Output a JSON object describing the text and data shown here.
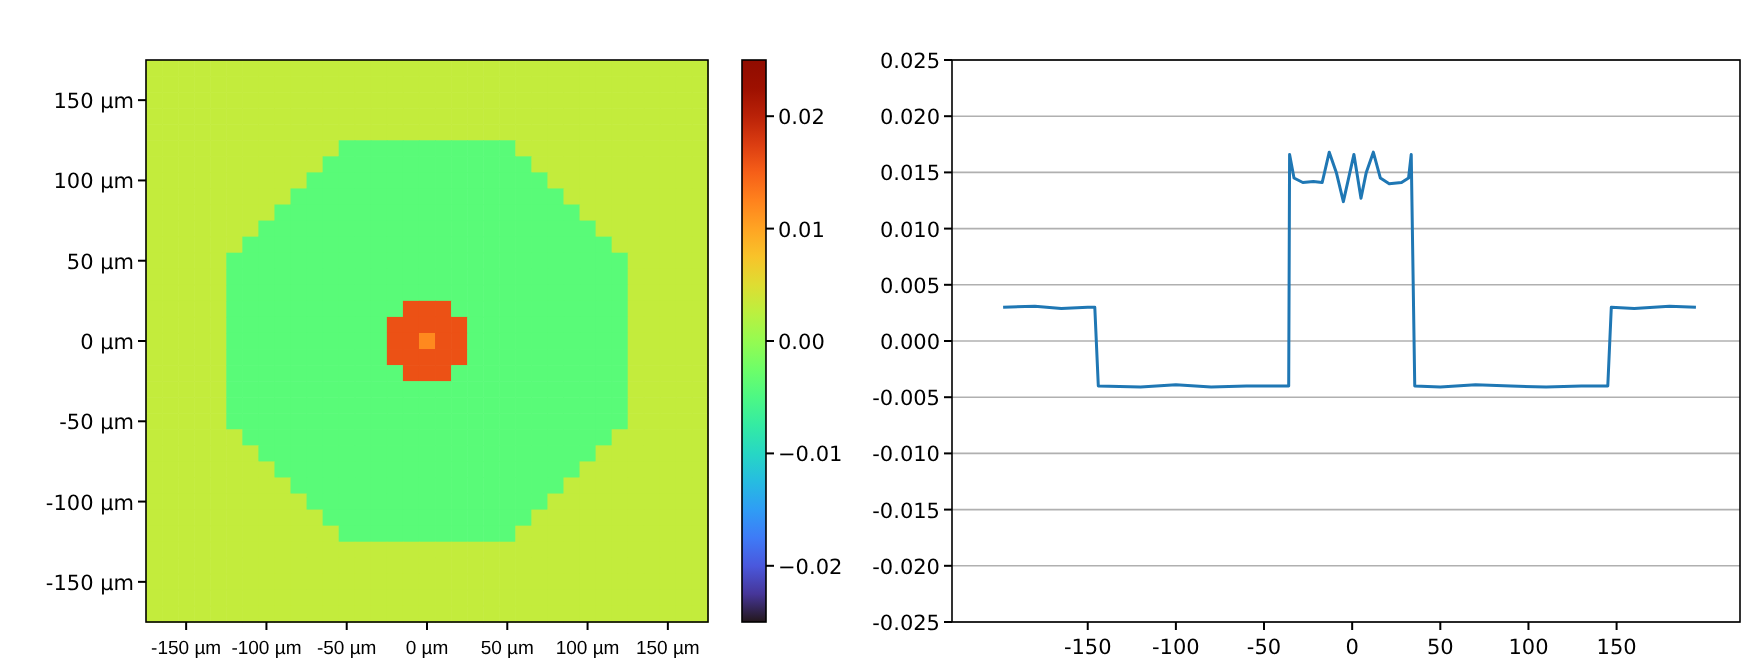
{
  "chart_data": [
    {
      "type": "heatmap",
      "categories": [
        null,
        null,
        "-150 µm",
        null,
        null,
        null,
        null,
        "-100 µm",
        null,
        null,
        null,
        null,
        "-50 µm",
        null,
        null,
        null,
        null,
        "0 µm",
        null,
        null,
        null,
        null,
        "50 µm",
        null,
        null,
        null,
        null,
        "100 µm",
        null,
        null,
        null,
        null,
        "150 µm",
        null,
        null
      ],
      "y_categories": [
        null,
        null,
        "150 µm",
        null,
        null,
        null,
        null,
        "100 µm",
        null,
        null,
        null,
        null,
        "50 µm",
        null,
        null,
        null,
        null,
        "0 µm",
        null,
        null,
        null,
        null,
        "-50 µm",
        null,
        null,
        null,
        null,
        "-100 µm",
        null,
        null,
        null,
        null,
        "-150 µm",
        null,
        null
      ],
      "clim": [
        -0.025,
        0.025
      ],
      "cticks": [
        {
          "value": -0.02,
          "label": "−0.02"
        },
        {
          "value": -0.01,
          "label": "−0.01"
        },
        {
          "value": 0,
          "label": "0.00"
        },
        {
          "value": 0.01,
          "label": "0.01"
        },
        {
          "value": 0.02,
          "label": "0.02"
        }
      ],
      "cells": [
        [
          0.003,
          0.003,
          0.003,
          0.003,
          0.003,
          0.003,
          0.003,
          0.003,
          0.003,
          0.003,
          0.003,
          0.003,
          0.003,
          0.003,
          0.003,
          0.003,
          0.003,
          0.003,
          0.003,
          0.003,
          0.003,
          0.003,
          0.003,
          0.003,
          0.003,
          0.003,
          0.003,
          0.003,
          0.003,
          0.003,
          0.003,
          0.003,
          0.003,
          0.003,
          0.003
        ],
        [
          0.003,
          0.003,
          0.003,
          0.003,
          0.003,
          0.003,
          0.003,
          0.003,
          0.003,
          0.003,
          0.003,
          0.003,
          0.003,
          0.003,
          0.003,
          0.003,
          0.003,
          0.003,
          0.003,
          0.003,
          0.003,
          0.003,
          0.003,
          0.003,
          0.003,
          0.003,
          0.003,
          0.003,
          0.003,
          0.003,
          0.003,
          0.003,
          0.003,
          0.003,
          0.003
        ],
        [
          0.003,
          0.003,
          0.003,
          0.003,
          0.003,
          0.003,
          0.003,
          0.003,
          0.003,
          0.003,
          0.003,
          0.003,
          0.003,
          0.003,
          0.003,
          0.003,
          0.003,
          0.003,
          0.003,
          0.003,
          0.003,
          0.003,
          0.003,
          0.003,
          0.003,
          0.003,
          0.003,
          0.003,
          0.003,
          0.003,
          0.003,
          0.003,
          0.003,
          0.003,
          0.003
        ],
        [
          0.003,
          0.003,
          0.003,
          0.003,
          0.003,
          0.003,
          0.003,
          0.003,
          0.003,
          0.003,
          0.003,
          0.003,
          0.003,
          0.003,
          0.003,
          0.003,
          0.003,
          0.003,
          0.003,
          0.003,
          0.003,
          0.003,
          0.003,
          0.003,
          0.003,
          0.003,
          0.003,
          0.003,
          0.003,
          0.003,
          0.003,
          0.003,
          0.003,
          0.003,
          0.003
        ],
        [
          0.003,
          0.003,
          0.003,
          0.003,
          0.003,
          0.003,
          0.003,
          0.003,
          0.003,
          0.003,
          0.003,
          0.003,
          0.003,
          0.003,
          0.003,
          0.003,
          0.003,
          0.003,
          0.003,
          0.003,
          0.003,
          0.003,
          0.003,
          0.003,
          0.003,
          0.003,
          0.003,
          0.003,
          0.003,
          0.003,
          0.003,
          0.003,
          0.003,
          0.003,
          0.003
        ],
        [
          0.003,
          0.003,
          0.003,
          0.003,
          0.003,
          0.003,
          0.003,
          0.003,
          0.003,
          0.003,
          0.003,
          0.003,
          -0.004,
          -0.004,
          -0.004,
          -0.004,
          -0.004,
          -0.004,
          -0.004,
          -0.004,
          -0.004,
          -0.004,
          -0.004,
          0.003,
          0.003,
          0.003,
          0.003,
          0.003,
          0.003,
          0.003,
          0.003,
          0.003,
          0.003,
          0.003,
          0.003
        ],
        [
          0.003,
          0.003,
          0.003,
          0.003,
          0.003,
          0.003,
          0.003,
          0.003,
          0.003,
          0.003,
          0.003,
          -0.004,
          -0.004,
          -0.004,
          -0.004,
          -0.004,
          -0.004,
          -0.004,
          -0.004,
          -0.004,
          -0.004,
          -0.004,
          -0.004,
          -0.004,
          0.003,
          0.003,
          0.003,
          0.003,
          0.003,
          0.003,
          0.003,
          0.003,
          0.003,
          0.003,
          0.003
        ],
        [
          0.003,
          0.003,
          0.003,
          0.003,
          0.003,
          0.003,
          0.003,
          0.003,
          0.003,
          0.003,
          -0.004,
          -0.004,
          -0.004,
          -0.004,
          -0.004,
          -0.004,
          -0.004,
          -0.004,
          -0.004,
          -0.004,
          -0.004,
          -0.004,
          -0.004,
          -0.004,
          -0.004,
          0.003,
          0.003,
          0.003,
          0.003,
          0.003,
          0.003,
          0.003,
          0.003,
          0.003,
          0.003
        ],
        [
          0.003,
          0.003,
          0.003,
          0.003,
          0.003,
          0.003,
          0.003,
          0.003,
          0.003,
          -0.004,
          -0.004,
          -0.004,
          -0.004,
          -0.004,
          -0.004,
          -0.004,
          -0.004,
          -0.004,
          -0.004,
          -0.004,
          -0.004,
          -0.004,
          -0.004,
          -0.004,
          -0.004,
          -0.004,
          0.003,
          0.003,
          0.003,
          0.003,
          0.003,
          0.003,
          0.003,
          0.003,
          0.003
        ],
        [
          0.003,
          0.003,
          0.003,
          0.003,
          0.003,
          0.003,
          0.003,
          0.003,
          -0.004,
          -0.004,
          -0.004,
          -0.004,
          -0.004,
          -0.004,
          -0.004,
          -0.004,
          -0.004,
          -0.004,
          -0.004,
          -0.004,
          -0.004,
          -0.004,
          -0.004,
          -0.004,
          -0.004,
          -0.004,
          -0.004,
          0.003,
          0.003,
          0.003,
          0.003,
          0.003,
          0.003,
          0.003,
          0.003
        ],
        [
          0.003,
          0.003,
          0.003,
          0.003,
          0.003,
          0.003,
          0.003,
          -0.004,
          -0.004,
          -0.004,
          -0.004,
          -0.004,
          -0.004,
          -0.004,
          -0.004,
          -0.004,
          -0.004,
          -0.004,
          -0.004,
          -0.004,
          -0.004,
          -0.004,
          -0.004,
          -0.004,
          -0.004,
          -0.004,
          -0.004,
          -0.004,
          0.003,
          0.003,
          0.003,
          0.003,
          0.003,
          0.003,
          0.003
        ],
        [
          0.003,
          0.003,
          0.003,
          0.003,
          0.003,
          0.003,
          -0.004,
          -0.004,
          -0.004,
          -0.004,
          -0.004,
          -0.004,
          -0.004,
          -0.004,
          -0.004,
          -0.004,
          -0.004,
          -0.004,
          -0.004,
          -0.004,
          -0.004,
          -0.004,
          -0.004,
          -0.004,
          -0.004,
          -0.004,
          -0.004,
          -0.004,
          -0.004,
          0.003,
          0.003,
          0.003,
          0.003,
          0.003,
          0.003
        ],
        [
          0.003,
          0.003,
          0.003,
          0.003,
          0.003,
          -0.004,
          -0.004,
          -0.004,
          -0.004,
          -0.004,
          -0.004,
          -0.004,
          -0.004,
          -0.004,
          -0.004,
          -0.004,
          -0.004,
          -0.004,
          -0.004,
          -0.004,
          -0.004,
          -0.004,
          -0.004,
          -0.004,
          -0.004,
          -0.004,
          -0.004,
          -0.004,
          -0.004,
          -0.004,
          0.003,
          0.003,
          0.003,
          0.003,
          0.003
        ],
        [
          0.003,
          0.003,
          0.003,
          0.003,
          0.003,
          -0.004,
          -0.004,
          -0.004,
          -0.004,
          -0.004,
          -0.004,
          -0.004,
          -0.004,
          -0.004,
          -0.004,
          -0.004,
          -0.004,
          -0.004,
          -0.004,
          -0.004,
          -0.004,
          -0.004,
          -0.004,
          -0.004,
          -0.004,
          -0.004,
          -0.004,
          -0.004,
          -0.004,
          -0.004,
          0.003,
          0.003,
          0.003,
          0.003,
          0.003
        ],
        [
          0.003,
          0.003,
          0.003,
          0.003,
          0.003,
          -0.004,
          -0.004,
          -0.004,
          -0.004,
          -0.004,
          -0.004,
          -0.004,
          -0.004,
          -0.004,
          -0.004,
          -0.004,
          -0.004,
          -0.004,
          -0.004,
          -0.004,
          -0.004,
          -0.004,
          -0.004,
          -0.004,
          -0.004,
          -0.004,
          -0.004,
          -0.004,
          -0.004,
          -0.004,
          0.003,
          0.003,
          0.003,
          0.003,
          0.003
        ],
        [
          0.003,
          0.003,
          0.003,
          0.003,
          0.003,
          -0.004,
          -0.004,
          -0.004,
          -0.004,
          -0.004,
          -0.004,
          -0.004,
          -0.004,
          -0.004,
          -0.004,
          -0.004,
          0.016,
          0.016,
          0.016,
          -0.004,
          -0.004,
          -0.004,
          -0.004,
          -0.004,
          -0.004,
          -0.004,
          -0.004,
          -0.004,
          -0.004,
          -0.004,
          0.003,
          0.003,
          0.003,
          0.003,
          0.003
        ],
        [
          0.003,
          0.003,
          0.003,
          0.003,
          0.003,
          -0.004,
          -0.004,
          -0.004,
          -0.004,
          -0.004,
          -0.004,
          -0.004,
          -0.004,
          -0.004,
          -0.004,
          0.016,
          0.016,
          0.016,
          0.016,
          0.016,
          -0.004,
          -0.004,
          -0.004,
          -0.004,
          -0.004,
          -0.004,
          -0.004,
          -0.004,
          -0.004,
          -0.004,
          0.003,
          0.003,
          0.003,
          0.003,
          0.003
        ],
        [
          0.003,
          0.003,
          0.003,
          0.003,
          0.003,
          -0.004,
          -0.004,
          -0.004,
          -0.004,
          -0.004,
          -0.004,
          -0.004,
          -0.004,
          -0.004,
          -0.004,
          0.016,
          0.016,
          0.012,
          0.016,
          0.016,
          -0.004,
          -0.004,
          -0.004,
          -0.004,
          -0.004,
          -0.004,
          -0.004,
          -0.004,
          -0.004,
          -0.004,
          0.003,
          0.003,
          0.003,
          0.003,
          0.003
        ],
        [
          0.003,
          0.003,
          0.003,
          0.003,
          0.003,
          -0.004,
          -0.004,
          -0.004,
          -0.004,
          -0.004,
          -0.004,
          -0.004,
          -0.004,
          -0.004,
          -0.004,
          0.016,
          0.016,
          0.016,
          0.016,
          0.016,
          -0.004,
          -0.004,
          -0.004,
          -0.004,
          -0.004,
          -0.004,
          -0.004,
          -0.004,
          -0.004,
          -0.004,
          0.003,
          0.003,
          0.003,
          0.003,
          0.003
        ],
        [
          0.003,
          0.003,
          0.003,
          0.003,
          0.003,
          -0.004,
          -0.004,
          -0.004,
          -0.004,
          -0.004,
          -0.004,
          -0.004,
          -0.004,
          -0.004,
          -0.004,
          -0.004,
          0.016,
          0.016,
          0.016,
          -0.004,
          -0.004,
          -0.004,
          -0.004,
          -0.004,
          -0.004,
          -0.004,
          -0.004,
          -0.004,
          -0.004,
          -0.004,
          0.003,
          0.003,
          0.003,
          0.003,
          0.003
        ],
        [
          0.003,
          0.003,
          0.003,
          0.003,
          0.003,
          -0.004,
          -0.004,
          -0.004,
          -0.004,
          -0.004,
          -0.004,
          -0.004,
          -0.004,
          -0.004,
          -0.004,
          -0.004,
          -0.004,
          -0.004,
          -0.004,
          -0.004,
          -0.004,
          -0.004,
          -0.004,
          -0.004,
          -0.004,
          -0.004,
          -0.004,
          -0.004,
          -0.004,
          -0.004,
          0.003,
          0.003,
          0.003,
          0.003,
          0.003
        ],
        [
          0.003,
          0.003,
          0.003,
          0.003,
          0.003,
          -0.004,
          -0.004,
          -0.004,
          -0.004,
          -0.004,
          -0.004,
          -0.004,
          -0.004,
          -0.004,
          -0.004,
          -0.004,
          -0.004,
          -0.004,
          -0.004,
          -0.004,
          -0.004,
          -0.004,
          -0.004,
          -0.004,
          -0.004,
          -0.004,
          -0.004,
          -0.004,
          -0.004,
          -0.004,
          0.003,
          0.003,
          0.003,
          0.003,
          0.003
        ],
        [
          0.003,
          0.003,
          0.003,
          0.003,
          0.003,
          -0.004,
          -0.004,
          -0.004,
          -0.004,
          -0.004,
          -0.004,
          -0.004,
          -0.004,
          -0.004,
          -0.004,
          -0.004,
          -0.004,
          -0.004,
          -0.004,
          -0.004,
          -0.004,
          -0.004,
          -0.004,
          -0.004,
          -0.004,
          -0.004,
          -0.004,
          -0.004,
          -0.004,
          -0.004,
          0.003,
          0.003,
          0.003,
          0.003,
          0.003
        ],
        [
          0.003,
          0.003,
          0.003,
          0.003,
          0.003,
          0.003,
          -0.004,
          -0.004,
          -0.004,
          -0.004,
          -0.004,
          -0.004,
          -0.004,
          -0.004,
          -0.004,
          -0.004,
          -0.004,
          -0.004,
          -0.004,
          -0.004,
          -0.004,
          -0.004,
          -0.004,
          -0.004,
          -0.004,
          -0.004,
          -0.004,
          -0.004,
          -0.004,
          0.003,
          0.003,
          0.003,
          0.003,
          0.003,
          0.003
        ],
        [
          0.003,
          0.003,
          0.003,
          0.003,
          0.003,
          0.003,
          0.003,
          -0.004,
          -0.004,
          -0.004,
          -0.004,
          -0.004,
          -0.004,
          -0.004,
          -0.004,
          -0.004,
          -0.004,
          -0.004,
          -0.004,
          -0.004,
          -0.004,
          -0.004,
          -0.004,
          -0.004,
          -0.004,
          -0.004,
          -0.004,
          -0.004,
          0.003,
          0.003,
          0.003,
          0.003,
          0.003,
          0.003,
          0.003
        ],
        [
          0.003,
          0.003,
          0.003,
          0.003,
          0.003,
          0.003,
          0.003,
          0.003,
          -0.004,
          -0.004,
          -0.004,
          -0.004,
          -0.004,
          -0.004,
          -0.004,
          -0.004,
          -0.004,
          -0.004,
          -0.004,
          -0.004,
          -0.004,
          -0.004,
          -0.004,
          -0.004,
          -0.004,
          -0.004,
          -0.004,
          0.003,
          0.003,
          0.003,
          0.003,
          0.003,
          0.003,
          0.003,
          0.003
        ],
        [
          0.003,
          0.003,
          0.003,
          0.003,
          0.003,
          0.003,
          0.003,
          0.003,
          0.003,
          -0.004,
          -0.004,
          -0.004,
          -0.004,
          -0.004,
          -0.004,
          -0.004,
          -0.004,
          -0.004,
          -0.004,
          -0.004,
          -0.004,
          -0.004,
          -0.004,
          -0.004,
          -0.004,
          -0.004,
          0.003,
          0.003,
          0.003,
          0.003,
          0.003,
          0.003,
          0.003,
          0.003,
          0.003
        ],
        [
          0.003,
          0.003,
          0.003,
          0.003,
          0.003,
          0.003,
          0.003,
          0.003,
          0.003,
          0.003,
          -0.004,
          -0.004,
          -0.004,
          -0.004,
          -0.004,
          -0.004,
          -0.004,
          -0.004,
          -0.004,
          -0.004,
          -0.004,
          -0.004,
          -0.004,
          -0.004,
          -0.004,
          0.003,
          0.003,
          0.003,
          0.003,
          0.003,
          0.003,
          0.003,
          0.003,
          0.003,
          0.003
        ],
        [
          0.003,
          0.003,
          0.003,
          0.003,
          0.003,
          0.003,
          0.003,
          0.003,
          0.003,
          0.003,
          0.003,
          -0.004,
          -0.004,
          -0.004,
          -0.004,
          -0.004,
          -0.004,
          -0.004,
          -0.004,
          -0.004,
          -0.004,
          -0.004,
          -0.004,
          -0.004,
          0.003,
          0.003,
          0.003,
          0.003,
          0.003,
          0.003,
          0.003,
          0.003,
          0.003,
          0.003,
          0.003
        ],
        [
          0.003,
          0.003,
          0.003,
          0.003,
          0.003,
          0.003,
          0.003,
          0.003,
          0.003,
          0.003,
          0.003,
          0.003,
          -0.004,
          -0.004,
          -0.004,
          -0.004,
          -0.004,
          -0.004,
          -0.004,
          -0.004,
          -0.004,
          -0.004,
          -0.004,
          0.003,
          0.003,
          0.003,
          0.003,
          0.003,
          0.003,
          0.003,
          0.003,
          0.003,
          0.003,
          0.003,
          0.003
        ],
        [
          0.003,
          0.003,
          0.003,
          0.003,
          0.003,
          0.003,
          0.003,
          0.003,
          0.003,
          0.003,
          0.003,
          0.003,
          0.003,
          0.003,
          0.003,
          0.003,
          0.003,
          0.003,
          0.003,
          0.003,
          0.003,
          0.003,
          0.003,
          0.003,
          0.003,
          0.003,
          0.003,
          0.003,
          0.003,
          0.003,
          0.003,
          0.003,
          0.003,
          0.003,
          0.003
        ],
        [
          0.003,
          0.003,
          0.003,
          0.003,
          0.003,
          0.003,
          0.003,
          0.003,
          0.003,
          0.003,
          0.003,
          0.003,
          0.003,
          0.003,
          0.003,
          0.003,
          0.003,
          0.003,
          0.003,
          0.003,
          0.003,
          0.003,
          0.003,
          0.003,
          0.003,
          0.003,
          0.003,
          0.003,
          0.003,
          0.003,
          0.003,
          0.003,
          0.003,
          0.003,
          0.003
        ],
        [
          0.003,
          0.003,
          0.003,
          0.003,
          0.003,
          0.003,
          0.003,
          0.003,
          0.003,
          0.003,
          0.003,
          0.003,
          0.003,
          0.003,
          0.003,
          0.003,
          0.003,
          0.003,
          0.003,
          0.003,
          0.003,
          0.003,
          0.003,
          0.003,
          0.003,
          0.003,
          0.003,
          0.003,
          0.003,
          0.003,
          0.003,
          0.003,
          0.003,
          0.003,
          0.003
        ],
        [
          0.003,
          0.003,
          0.003,
          0.003,
          0.003,
          0.003,
          0.003,
          0.003,
          0.003,
          0.003,
          0.003,
          0.003,
          0.003,
          0.003,
          0.003,
          0.003,
          0.003,
          0.003,
          0.003,
          0.003,
          0.003,
          0.003,
          0.003,
          0.003,
          0.003,
          0.003,
          0.003,
          0.003,
          0.003,
          0.003,
          0.003,
          0.003,
          0.003,
          0.003,
          0.003
        ],
        [
          0.003,
          0.003,
          0.003,
          0.003,
          0.003,
          0.003,
          0.003,
          0.003,
          0.003,
          0.003,
          0.003,
          0.003,
          0.003,
          0.003,
          0.003,
          0.003,
          0.003,
          0.003,
          0.003,
          0.003,
          0.003,
          0.003,
          0.003,
          0.003,
          0.003,
          0.003,
          0.003,
          0.003,
          0.003,
          0.003,
          0.003,
          0.003,
          0.003,
          0.003,
          0.003
        ]
      ]
    },
    {
      "type": "line",
      "x": [
        -198,
        -180,
        -165,
        -150,
        -146,
        -144,
        -120,
        -100,
        -80,
        -60,
        -40,
        -36,
        -35.5,
        -33,
        -28,
        -22,
        -17,
        -13,
        -9,
        -5,
        1,
        5,
        8,
        12,
        16,
        21,
        28,
        32,
        33.5,
        35.5,
        50,
        70,
        90,
        110,
        130,
        145,
        147,
        160,
        180,
        195
      ],
      "series": [
        {
          "color": "#1f77b4",
          "values": [
            0.003,
            0.0031,
            0.0029,
            0.003,
            0.003,
            -0.004,
            -0.0041,
            -0.0039,
            -0.0041,
            -0.004,
            -0.004,
            -0.004,
            0.0166,
            0.0145,
            0.0141,
            0.0142,
            0.0141,
            0.0168,
            0.015,
            0.0124,
            0.0166,
            0.0127,
            0.015,
            0.0168,
            0.0145,
            0.014,
            0.0141,
            0.0145,
            0.0166,
            -0.004,
            -0.0041,
            -0.0039,
            -0.004,
            -0.0041,
            -0.004,
            -0.004,
            0.003,
            0.0029,
            0.0031,
            0.003
          ]
        }
      ],
      "xlim": [
        -227,
        220
      ],
      "xticks": [
        -150,
        -100,
        -50,
        0,
        50,
        100,
        150
      ],
      "ylim": [
        -0.025,
        0.025
      ],
      "yticks": [
        {
          "value": -0.025,
          "label": "-0.025"
        },
        {
          "value": -0.02,
          "label": "-0.020"
        },
        {
          "value": -0.015,
          "label": "-0.015"
        },
        {
          "value": -0.01,
          "label": "-0.010"
        },
        {
          "value": -0.005,
          "label": "-0.005"
        },
        {
          "value": 0,
          "label": "0.000"
        },
        {
          "value": 0.005,
          "label": "0.005"
        },
        {
          "value": 0.01,
          "label": "0.010"
        },
        {
          "value": 0.015,
          "label": "0.015"
        },
        {
          "value": 0.02,
          "label": "0.020"
        },
        {
          "value": 0.025,
          "label": "0.025"
        }
      ],
      "grid": "y"
    }
  ]
}
